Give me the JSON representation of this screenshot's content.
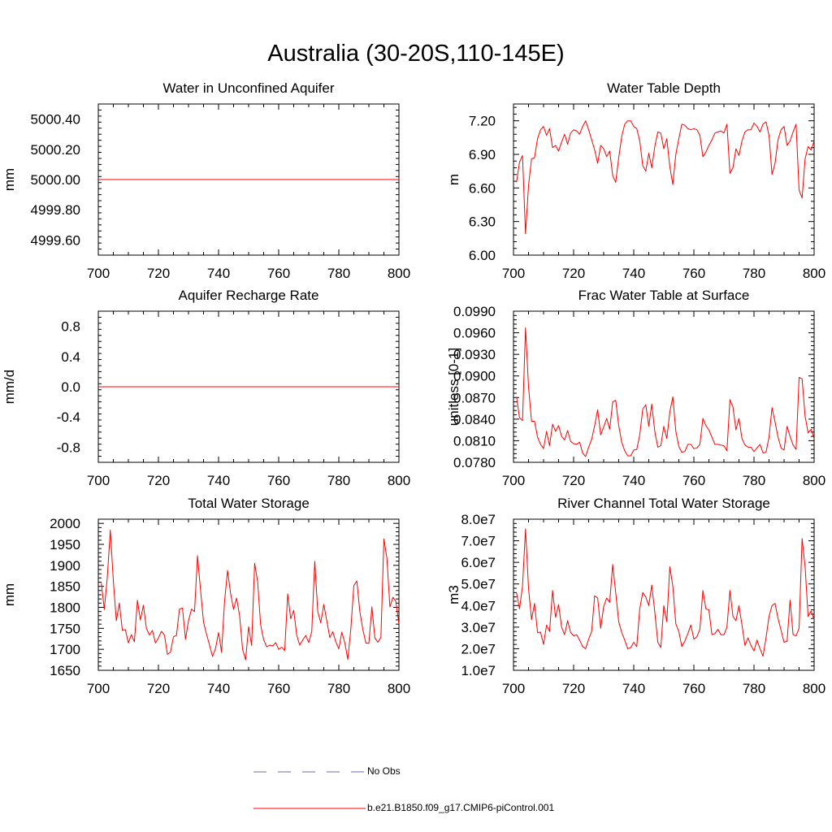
{
  "title": "Australia (30-20S,110-145E)",
  "legend": [
    {
      "label": "No Obs",
      "color": "#6b6bb3",
      "dash": "dashed"
    },
    {
      "label": "b.e21.B1850.f09_g17.CMIP6-piControl.001",
      "color": "#ff0000",
      "dash": "solid"
    }
  ],
  "chart_data": [
    {
      "type": "line",
      "title": "Water in Unconfined Aquifer",
      "ylabel": "mm",
      "xlim": [
        700,
        800
      ],
      "ylim": [
        4999.5,
        5000.5
      ],
      "xticks": [
        700,
        720,
        740,
        760,
        780,
        800
      ],
      "yticks": [
        4999.6,
        4999.8,
        5000.0,
        5000.2,
        5000.4
      ],
      "ytick_labels": [
        "4999.60",
        "4999.80",
        "5000.00",
        "5000.20",
        "5000.40"
      ],
      "series": [
        {
          "x": [
            700,
            800
          ],
          "values": [
            5000.0,
            5000.0
          ]
        }
      ]
    },
    {
      "type": "line",
      "title": "Water Table Depth",
      "ylabel": "m",
      "xlim": [
        700,
        800
      ],
      "ylim": [
        6.0,
        7.35
      ],
      "xticks": [
        700,
        720,
        740,
        760,
        780,
        800
      ],
      "yticks": [
        6.0,
        6.3,
        6.6,
        6.9,
        7.2
      ],
      "ytick_labels": [
        "6.00",
        "6.30",
        "6.60",
        "6.90",
        "7.20"
      ],
      "series": [
        {
          "x": [
            701,
            702,
            703,
            704,
            705,
            706,
            707,
            708,
            709,
            710,
            711,
            712,
            713,
            714,
            715,
            716,
            717,
            718,
            719,
            720,
            721,
            722,
            723,
            724,
            725,
            726,
            727,
            728,
            729,
            730,
            731,
            732,
            733,
            734,
            735,
            736,
            737,
            738,
            739,
            740,
            741,
            742,
            743,
            744,
            745,
            746,
            747,
            748,
            749,
            750,
            751,
            752,
            753,
            754,
            755,
            756,
            757,
            758,
            759,
            760,
            761,
            762,
            763,
            764,
            765,
            766,
            767,
            768,
            769,
            770,
            771,
            772,
            773,
            774,
            775,
            776,
            777,
            778,
            779,
            780,
            781,
            782,
            783,
            784,
            785,
            786,
            787,
            788,
            789,
            790,
            791,
            792,
            793,
            794,
            795,
            796,
            797,
            798,
            799,
            800
          ],
          "values": [
            6.65,
            6.83,
            6.89,
            6.19,
            6.62,
            6.86,
            6.87,
            7.04,
            7.12,
            7.15,
            7.07,
            7.13,
            6.96,
            6.98,
            6.93,
            7.01,
            7.08,
            6.99,
            7.09,
            7.12,
            7.11,
            7.08,
            7.15,
            7.2,
            7.12,
            7.03,
            6.94,
            6.82,
            6.98,
            6.95,
            6.88,
            6.93,
            6.71,
            6.65,
            6.87,
            7.06,
            7.17,
            7.2,
            7.2,
            7.15,
            7.13,
            7.02,
            6.8,
            6.75,
            6.91,
            6.78,
            6.97,
            7.1,
            7.09,
            6.95,
            7.04,
            6.79,
            6.63,
            6.9,
            7.04,
            7.17,
            7.16,
            7.13,
            7.12,
            7.13,
            7.12,
            7.07,
            6.88,
            6.92,
            6.98,
            7.03,
            7.09,
            7.1,
            7.11,
            7.09,
            7.17,
            6.73,
            6.78,
            6.95,
            6.89,
            7.02,
            7.1,
            7.12,
            7.12,
            7.18,
            7.15,
            7.1,
            7.17,
            7.19,
            7.07,
            6.72,
            6.82,
            7.03,
            7.12,
            7.15,
            6.98,
            7.02,
            7.1,
            7.17,
            6.58,
            6.51,
            6.86,
            6.97,
            6.94,
            7.02
          ]
        }
      ]
    },
    {
      "type": "line",
      "title": "Aquifer Recharge Rate",
      "ylabel": "mm/d",
      "xlim": [
        700,
        800
      ],
      "ylim": [
        -1.0,
        1.0
      ],
      "xticks": [
        700,
        720,
        740,
        760,
        780,
        800
      ],
      "yticks": [
        -0.8,
        -0.4,
        0.0,
        0.4,
        0.8
      ],
      "ytick_labels": [
        "-0.8",
        "-0.4",
        "0.0",
        "0.4",
        "0.8"
      ],
      "series": [
        {
          "x": [
            700,
            800
          ],
          "values": [
            0.0,
            0.0
          ]
        }
      ]
    },
    {
      "type": "line",
      "title": "Frac Water Table at Surface",
      "ylabel": "unitless [0-1]",
      "xlim": [
        700,
        800
      ],
      "ylim": [
        0.078,
        0.099
      ],
      "xticks": [
        700,
        720,
        740,
        760,
        780,
        800
      ],
      "yticks": [
        0.078,
        0.081,
        0.084,
        0.087,
        0.09,
        0.093,
        0.096,
        0.099
      ],
      "ytick_labels": [
        "0.0780",
        "0.0810",
        "0.0840",
        "0.0870",
        "0.0900",
        "0.0930",
        "0.0960",
        "0.0990"
      ],
      "series": [
        {
          "x": [
            701,
            702,
            703,
            704,
            705,
            706,
            707,
            708,
            709,
            710,
            711,
            712,
            713,
            714,
            715,
            716,
            717,
            718,
            719,
            720,
            721,
            722,
            723,
            724,
            725,
            726,
            727,
            728,
            729,
            730,
            731,
            732,
            733,
            734,
            735,
            736,
            737,
            738,
            739,
            740,
            741,
            742,
            743,
            744,
            745,
            746,
            747,
            748,
            749,
            750,
            751,
            752,
            753,
            754,
            755,
            756,
            757,
            758,
            759,
            760,
            761,
            762,
            763,
            764,
            765,
            766,
            767,
            768,
            769,
            770,
            771,
            772,
            773,
            774,
            775,
            776,
            777,
            778,
            779,
            780,
            781,
            782,
            783,
            784,
            785,
            786,
            787,
            788,
            789,
            790,
            791,
            792,
            793,
            794,
            795,
            796,
            797,
            798,
            799,
            800
          ],
          "values": [
            0.0871,
            0.0842,
            0.0838,
            0.0967,
            0.0885,
            0.0837,
            0.0837,
            0.0815,
            0.0805,
            0.0799,
            0.0823,
            0.0803,
            0.0833,
            0.0823,
            0.0831,
            0.0816,
            0.0811,
            0.0824,
            0.0809,
            0.0806,
            0.0805,
            0.0808,
            0.0793,
            0.0788,
            0.0801,
            0.0812,
            0.0831,
            0.0853,
            0.0818,
            0.0829,
            0.0841,
            0.0826,
            0.0864,
            0.0866,
            0.0831,
            0.0808,
            0.0796,
            0.0789,
            0.0789,
            0.0797,
            0.0798,
            0.0818,
            0.0854,
            0.086,
            0.083,
            0.0861,
            0.0823,
            0.0801,
            0.0803,
            0.083,
            0.0813,
            0.085,
            0.0871,
            0.0823,
            0.0802,
            0.0794,
            0.0795,
            0.0805,
            0.0805,
            0.0799,
            0.08,
            0.0805,
            0.0841,
            0.0831,
            0.0825,
            0.0815,
            0.0805,
            0.0805,
            0.0804,
            0.0803,
            0.0796,
            0.0867,
            0.0857,
            0.0825,
            0.0841,
            0.0813,
            0.0804,
            0.0801,
            0.0801,
            0.0795,
            0.08,
            0.0805,
            0.0793,
            0.0794,
            0.0815,
            0.0856,
            0.0836,
            0.0815,
            0.08,
            0.0797,
            0.083,
            0.0816,
            0.0804,
            0.0798,
            0.0898,
            0.0896,
            0.0844,
            0.0821,
            0.0826,
            0.0813
          ]
        }
      ]
    },
    {
      "type": "line",
      "title": "Total Water Storage",
      "ylabel": "mm",
      "xlim": [
        700,
        800
      ],
      "ylim": [
        1650,
        2010
      ],
      "xticks": [
        700,
        720,
        740,
        760,
        780,
        800
      ],
      "yticks": [
        1650,
        1700,
        1750,
        1800,
        1850,
        1900,
        1950,
        2000
      ],
      "ytick_labels": [
        "1650",
        "1700",
        "1750",
        "1800",
        "1850",
        "1900",
        "1950",
        "2000"
      ],
      "series": [
        {
          "x": [
            701,
            702,
            703,
            704,
            705,
            706,
            707,
            708,
            709,
            710,
            711,
            712,
            713,
            714,
            715,
            716,
            717,
            718,
            719,
            720,
            721,
            722,
            723,
            724,
            725,
            726,
            727,
            728,
            729,
            730,
            731,
            732,
            733,
            734,
            735,
            736,
            737,
            738,
            739,
            740,
            741,
            742,
            743,
            744,
            745,
            746,
            747,
            748,
            749,
            750,
            751,
            752,
            753,
            754,
            755,
            756,
            757,
            758,
            759,
            760,
            761,
            762,
            763,
            764,
            765,
            766,
            767,
            768,
            769,
            770,
            771,
            772,
            773,
            774,
            775,
            776,
            777,
            778,
            779,
            780,
            781,
            782,
            783,
            784,
            785,
            786,
            787,
            788,
            789,
            790,
            791,
            792,
            793,
            794,
            795,
            796,
            797,
            798,
            799,
            800
          ],
          "values": [
            1858,
            1795,
            1873,
            1984,
            1863,
            1768,
            1810,
            1745,
            1747,
            1715,
            1735,
            1718,
            1817,
            1770,
            1805,
            1750,
            1734,
            1745,
            1715,
            1727,
            1743,
            1734,
            1688,
            1693,
            1730,
            1733,
            1796,
            1798,
            1724,
            1768,
            1796,
            1790,
            1923,
            1842,
            1765,
            1736,
            1710,
            1683,
            1702,
            1740,
            1693,
            1815,
            1888,
            1833,
            1795,
            1822,
            1780,
            1700,
            1675,
            1754,
            1709,
            1905,
            1861,
            1758,
            1723,
            1706,
            1710,
            1708,
            1716,
            1700,
            1705,
            1697,
            1832,
            1773,
            1793,
            1734,
            1710,
            1722,
            1733,
            1716,
            1742,
            1910,
            1790,
            1763,
            1807,
            1768,
            1728,
            1742,
            1718,
            1701,
            1741,
            1715,
            1676,
            1749,
            1852,
            1863,
            1790,
            1747,
            1715,
            1714,
            1801,
            1727,
            1717,
            1728,
            1963,
            1917,
            1801,
            1824,
            1814,
            1760
          ]
        }
      ]
    },
    {
      "type": "line",
      "title": "River Channel Total Water Storage",
      "ylabel": "m3",
      "xlim": [
        700,
        800
      ],
      "ylim": [
        10000000,
        80000000
      ],
      "xticks": [
        700,
        720,
        740,
        760,
        780,
        800
      ],
      "yticks": [
        10000000,
        20000000,
        30000000,
        40000000,
        50000000,
        60000000,
        70000000,
        80000000
      ],
      "ytick_labels": [
        "1.0e7",
        "2.0e7",
        "3.0e7",
        "4.0e7",
        "5.0e7",
        "6.0e7",
        "7.0e7",
        "8.0e7"
      ],
      "series": [
        {
          "x": [
            701,
            702,
            703,
            704,
            705,
            706,
            707,
            708,
            709,
            710,
            711,
            712,
            713,
            714,
            715,
            716,
            717,
            718,
            719,
            720,
            721,
            722,
            723,
            724,
            725,
            726,
            727,
            728,
            729,
            730,
            731,
            732,
            733,
            734,
            735,
            736,
            737,
            738,
            739,
            740,
            741,
            742,
            743,
            744,
            745,
            746,
            747,
            748,
            749,
            750,
            751,
            752,
            753,
            754,
            755,
            756,
            757,
            758,
            759,
            760,
            761,
            762,
            763,
            764,
            765,
            766,
            767,
            768,
            769,
            770,
            771,
            772,
            773,
            774,
            775,
            776,
            777,
            778,
            779,
            780,
            781,
            782,
            783,
            784,
            785,
            786,
            787,
            788,
            789,
            790,
            791,
            792,
            793,
            794,
            795,
            796,
            797,
            798,
            799,
            800
          ],
          "values": [
            46000000,
            38500000,
            49000000,
            75500000,
            48000000,
            33500000,
            41000000,
            27500000,
            27700000,
            22000000,
            31000000,
            28000000,
            47000000,
            34500000,
            40500000,
            30000000,
            26500000,
            33000000,
            27500000,
            26000000,
            26500000,
            24000000,
            21000000,
            20000000,
            24500000,
            28000000,
            44500000,
            43500000,
            29500000,
            39500000,
            43500000,
            41500000,
            59000000,
            46000000,
            32500000,
            27500000,
            24000000,
            20000000,
            20500000,
            23000000,
            21000000,
            38500000,
            46000000,
            44000000,
            40000000,
            49500000,
            37000000,
            23000000,
            20500000,
            40000000,
            32500000,
            58000000,
            49000000,
            31500000,
            28000000,
            21000000,
            23500000,
            27000000,
            31000000,
            24500000,
            25500000,
            29000000,
            47000000,
            38500000,
            38000000,
            26500000,
            27000000,
            29000000,
            26500000,
            26500000,
            30000000,
            47000000,
            35000000,
            33000000,
            40000000,
            31000000,
            21500000,
            25000000,
            21500000,
            19000000,
            24000000,
            20000000,
            16500000,
            25000000,
            35000000,
            40000000,
            41000000,
            34000000,
            28500000,
            23000000,
            23500000,
            42500000,
            26500000,
            26000000,
            29500000,
            71000000,
            58000000,
            35000000,
            37500000,
            33500000
          ]
        }
      ]
    }
  ]
}
